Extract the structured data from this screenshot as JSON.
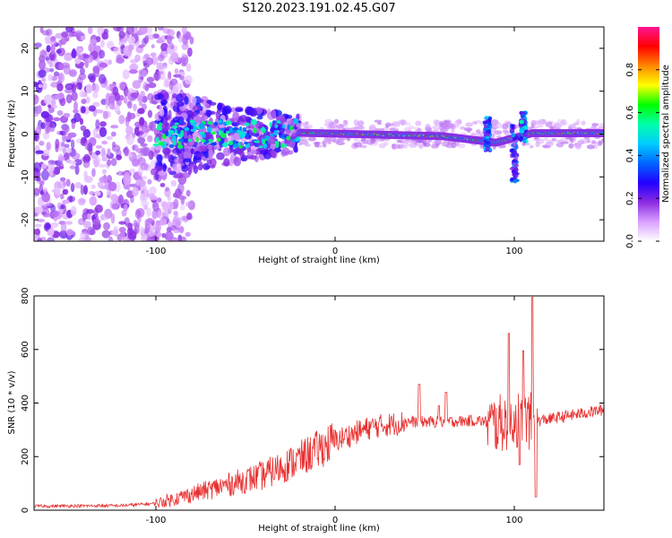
{
  "figure_title": "S120.2023.191.02.45.G07",
  "chart_data": [
    {
      "type": "heatmap",
      "xlabel": "Height of straight line (km)",
      "ylabel": "Frequency (Hz)",
      "xlim": [
        -168,
        150
      ],
      "ylim": [
        -25,
        25
      ],
      "x_ticks": [
        -100,
        0,
        100
      ],
      "y_ticks": [
        -20,
        -10,
        0,
        10,
        20
      ],
      "colorbar": {
        "label": "Normalized spectral amplitude",
        "range": [
          0,
          1
        ],
        "ticks": [
          0.0,
          0.2,
          0.4,
          0.6,
          0.8
        ],
        "colors": [
          "#ffffff",
          "#d9a0ff",
          "#8a2be2",
          "#2200ff",
          "#0066ff",
          "#00ccff",
          "#00ffaa",
          "#00ff00",
          "#ffff00",
          "#ff8800",
          "#ff0000",
          "#ff1493"
        ]
      },
      "features": [
        {
          "name": "diffuse scatter",
          "x_range": [
            -168,
            -100
          ],
          "freq_range": [
            -25,
            25
          ],
          "amplitude": 0.1
        },
        {
          "name": "transition blobs",
          "x_range": [
            -100,
            -20
          ],
          "freq_range": [
            -8,
            8
          ],
          "amplitude": 0.3
        },
        {
          "name": "carrier line",
          "x_range": [
            -20,
            150
          ],
          "freq_center": [
            [
              -20,
              0.3
            ],
            [
              60,
              -0.5
            ],
            [
              90,
              -2.0
            ],
            [
              110,
              0.2
            ],
            [
              150,
              0.2
            ]
          ],
          "amplitude": 0.85
        },
        {
          "name": "spread spike",
          "x": 85,
          "freq_range": [
            -4,
            4
          ],
          "amplitude": 0.4
        },
        {
          "name": "spread spike",
          "x": 100,
          "freq_range": [
            -11,
            2
          ],
          "amplitude": 0.35
        },
        {
          "name": "spread spike",
          "x": 105,
          "freq_range": [
            -2,
            5
          ],
          "amplitude": 0.45
        }
      ]
    },
    {
      "type": "line",
      "xlabel": "Height of straight line (km)",
      "ylabel": "SNR (10 * v/v)",
      "xlim": [
        -168,
        150
      ],
      "ylim": [
        0,
        800
      ],
      "x_ticks": [
        -100,
        0,
        100
      ],
      "y_ticks": [
        0,
        200,
        400,
        600,
        800
      ],
      "color": "#e83030",
      "series_trend": {
        "x": [
          -168,
          -120,
          -100,
          -80,
          -60,
          -40,
          -20,
          0,
          20,
          40,
          60,
          80,
          90,
          100,
          110,
          150
        ],
        "y": [
          15,
          17,
          25,
          60,
          95,
          130,
          190,
          260,
          310,
          330,
          330,
          335,
          320,
          340,
          330,
          375
        ]
      },
      "spikes": [
        {
          "x": 47,
          "y": 470
        },
        {
          "x": 58,
          "y": 390
        },
        {
          "x": 62,
          "y": 440
        },
        {
          "x": 97,
          "y": 660
        },
        {
          "x": 105,
          "y": 595
        },
        {
          "x": 110,
          "y": 795
        },
        {
          "x": 103,
          "y": 170
        },
        {
          "x": 112,
          "y": 50
        }
      ]
    }
  ]
}
